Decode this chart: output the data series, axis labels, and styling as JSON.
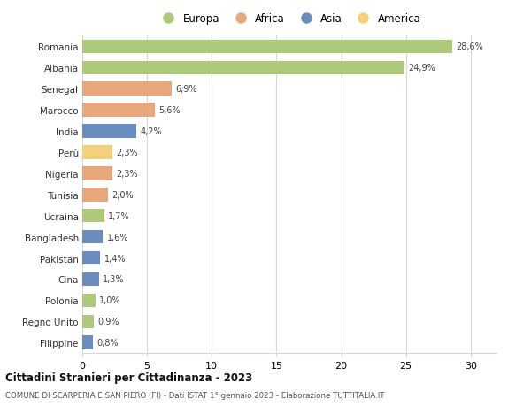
{
  "categories": [
    "Romania",
    "Albania",
    "Senegal",
    "Marocco",
    "India",
    "Perù",
    "Nigeria",
    "Tunisia",
    "Ucraina",
    "Bangladesh",
    "Pakistan",
    "Cina",
    "Polonia",
    "Regno Unito",
    "Filippine"
  ],
  "values": [
    28.6,
    24.9,
    6.9,
    5.6,
    4.2,
    2.3,
    2.3,
    2.0,
    1.7,
    1.6,
    1.4,
    1.3,
    1.0,
    0.9,
    0.8
  ],
  "labels": [
    "28,6%",
    "24,9%",
    "6,9%",
    "5,6%",
    "4,2%",
    "2,3%",
    "2,3%",
    "2,0%",
    "1,7%",
    "1,6%",
    "1,4%",
    "1,3%",
    "1,0%",
    "0,9%",
    "0,8%"
  ],
  "continents": [
    "Europa",
    "Europa",
    "Africa",
    "Africa",
    "Asia",
    "America",
    "Africa",
    "Africa",
    "Europa",
    "Asia",
    "Asia",
    "Asia",
    "Europa",
    "Europa",
    "Asia"
  ],
  "colors": {
    "Europa": "#adc97a",
    "Africa": "#e8a87c",
    "Asia": "#6b8cbf",
    "America": "#f5d07a"
  },
  "legend_order": [
    "Europa",
    "Africa",
    "Asia",
    "America"
  ],
  "legend_colors": [
    "#adc97a",
    "#e8a87c",
    "#6b8cbf",
    "#f5d07a"
  ],
  "legend_labels": [
    "Europa",
    "Africa",
    "Asia",
    "America"
  ],
  "title": "Cittadini Stranieri per Cittadinanza - 2023",
  "subtitle": "COMUNE DI SCARPERIA E SAN PIERO (FI) - Dati ISTAT 1° gennaio 2023 - Elaborazione TUTTITALIA.IT",
  "xlim": [
    0,
    32
  ],
  "xticks": [
    0,
    5,
    10,
    15,
    20,
    25,
    30
  ],
  "bg_color": "#ffffff",
  "grid_color": "#d8d8d8",
  "bar_height": 0.65
}
